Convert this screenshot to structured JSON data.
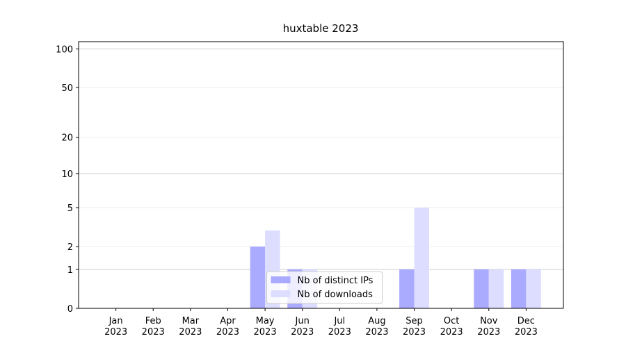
{
  "chart_data": {
    "type": "bar",
    "title": "huxtable 2023",
    "categories": [
      [
        "Jan",
        "2023"
      ],
      [
        "Feb",
        "2023"
      ],
      [
        "Mar",
        "2023"
      ],
      [
        "Apr",
        "2023"
      ],
      [
        "May",
        "2023"
      ],
      [
        "Jun",
        "2023"
      ],
      [
        "Jul",
        "2023"
      ],
      [
        "Aug",
        "2023"
      ],
      [
        "Sep",
        "2023"
      ],
      [
        "Oct",
        "2023"
      ],
      [
        "Nov",
        "2023"
      ],
      [
        "Dec",
        "2023"
      ]
    ],
    "series": [
      {
        "name": "Nb of distinct IPs",
        "color": "#aaaaff",
        "values": [
          0,
          0,
          0,
          0,
          2,
          1,
          0,
          0,
          1,
          0,
          1,
          1
        ]
      },
      {
        "name": "Nb of downloads",
        "color": "#ddddff",
        "values": [
          0,
          0,
          0,
          0,
          3,
          1,
          0,
          0,
          5,
          0,
          1,
          1
        ]
      }
    ],
    "y_scale": "log1p",
    "ylim": [
      0,
      114
    ],
    "yticks": [
      0,
      1,
      2,
      5,
      10,
      20,
      50,
      100
    ],
    "grid": true,
    "legend": "lower center"
  }
}
